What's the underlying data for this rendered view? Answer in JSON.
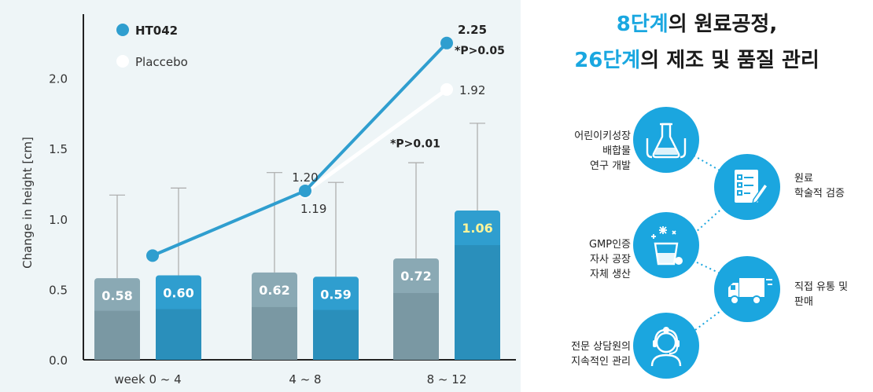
{
  "chart_data": {
    "type": "bar",
    "ylabel": "Change in height [cm]",
    "ylim": [
      0,
      2.5
    ],
    "yticks": [
      "0.0",
      "0.5",
      "1.0",
      "1.5",
      "2.0"
    ],
    "categories": [
      "week 0 ~ 4",
      "4 ~ 8",
      "8 ~ 12"
    ],
    "series": [
      {
        "name": "HT042",
        "color": "#2f9ecf",
        "values": [
          0.6,
          0.59,
          1.06
        ],
        "labels": [
          "0.60",
          "0.59",
          "1.06"
        ],
        "error_upper": [
          1.22,
          1.26,
          1.68
        ]
      },
      {
        "name": "Placcebo",
        "color": "#8aa9b4",
        "values": [
          0.58,
          0.62,
          0.72
        ],
        "labels": [
          "0.58",
          "0.62",
          "0.72"
        ],
        "error_upper": [
          1.17,
          1.33,
          1.4
        ]
      }
    ],
    "lines": [
      {
        "name": "HT042",
        "color": "#2f9ecf",
        "points": [
          [
            0,
            0.74
          ],
          [
            1,
            1.2
          ],
          [
            2,
            2.25
          ]
        ],
        "labels": [
          "",
          "1.20",
          "2.25"
        ]
      },
      {
        "name": "Placcebo",
        "color": "#ffffff",
        "points": [
          [
            1,
            1.19
          ],
          [
            2,
            1.92
          ]
        ],
        "labels": [
          "1.19",
          "1.92"
        ]
      }
    ],
    "annotations": [
      "*P>0.05",
      "*P>0.01"
    ],
    "legend": "top-left",
    "grid": false
  },
  "infographic": {
    "headline1_hl": "8단계",
    "headline1_rest": "의 원료공정,",
    "headline2_hl": "26단계",
    "headline2_rest": "의 제조 및 품질 관리",
    "steps": [
      {
        "line1": "어린이키성장",
        "line2": "배합물",
        "line3": "연구 개발",
        "icon": "lab-flask-icon"
      },
      {
        "line1": "원료",
        "line2": "학술적 검증",
        "line3": "",
        "icon": "checklist-icon"
      },
      {
        "line1": "GMP인증",
        "line2": "자사 공장",
        "line3": "자체 생산",
        "icon": "factory-cup-icon"
      },
      {
        "line1": "직접 유통 및",
        "line2": "판매",
        "line3": "",
        "icon": "delivery-truck-icon"
      },
      {
        "line1": "전문 상담원의",
        "line2": "지속적인 관리",
        "line3": "",
        "icon": "headset-agent-icon"
      }
    ],
    "accent": "#1ba6df"
  }
}
